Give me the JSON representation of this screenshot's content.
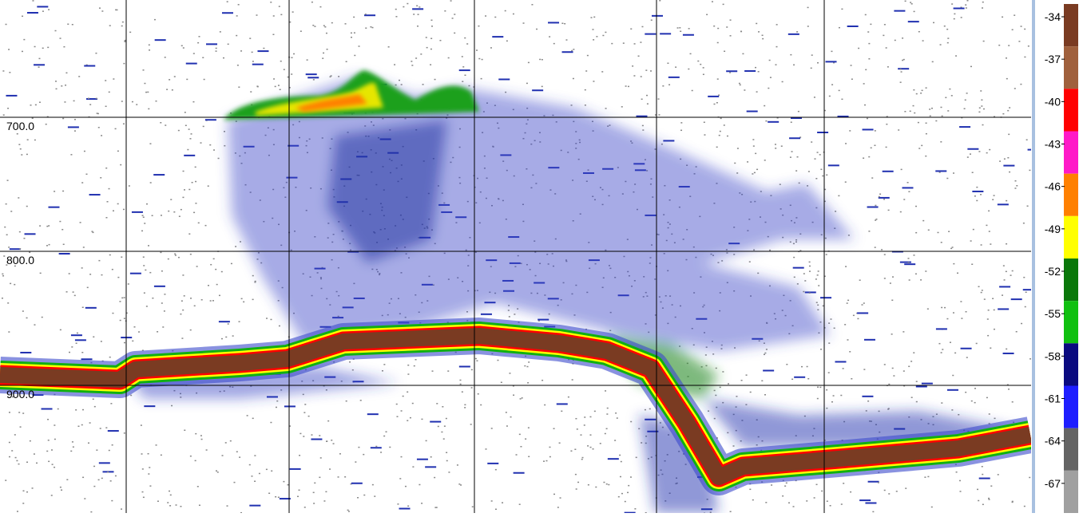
{
  "echogram": {
    "depth_labels": [
      "700.0",
      "800.0",
      "900.0"
    ]
  },
  "color_scale": {
    "labels": [
      "-34",
      "-37",
      "-40",
      "-43",
      "-46",
      "-49",
      "-52",
      "-55",
      "-58",
      "-61",
      "-64",
      "-67"
    ],
    "colors": [
      "#7a3b22",
      "#a0603c",
      "#ff0000",
      "#ff19c8",
      "#ff8000",
      "#ffff00",
      "#0a780a",
      "#10c010",
      "#0a0a80",
      "#1e1eff",
      "#646464",
      "#a0a0a0"
    ]
  }
}
